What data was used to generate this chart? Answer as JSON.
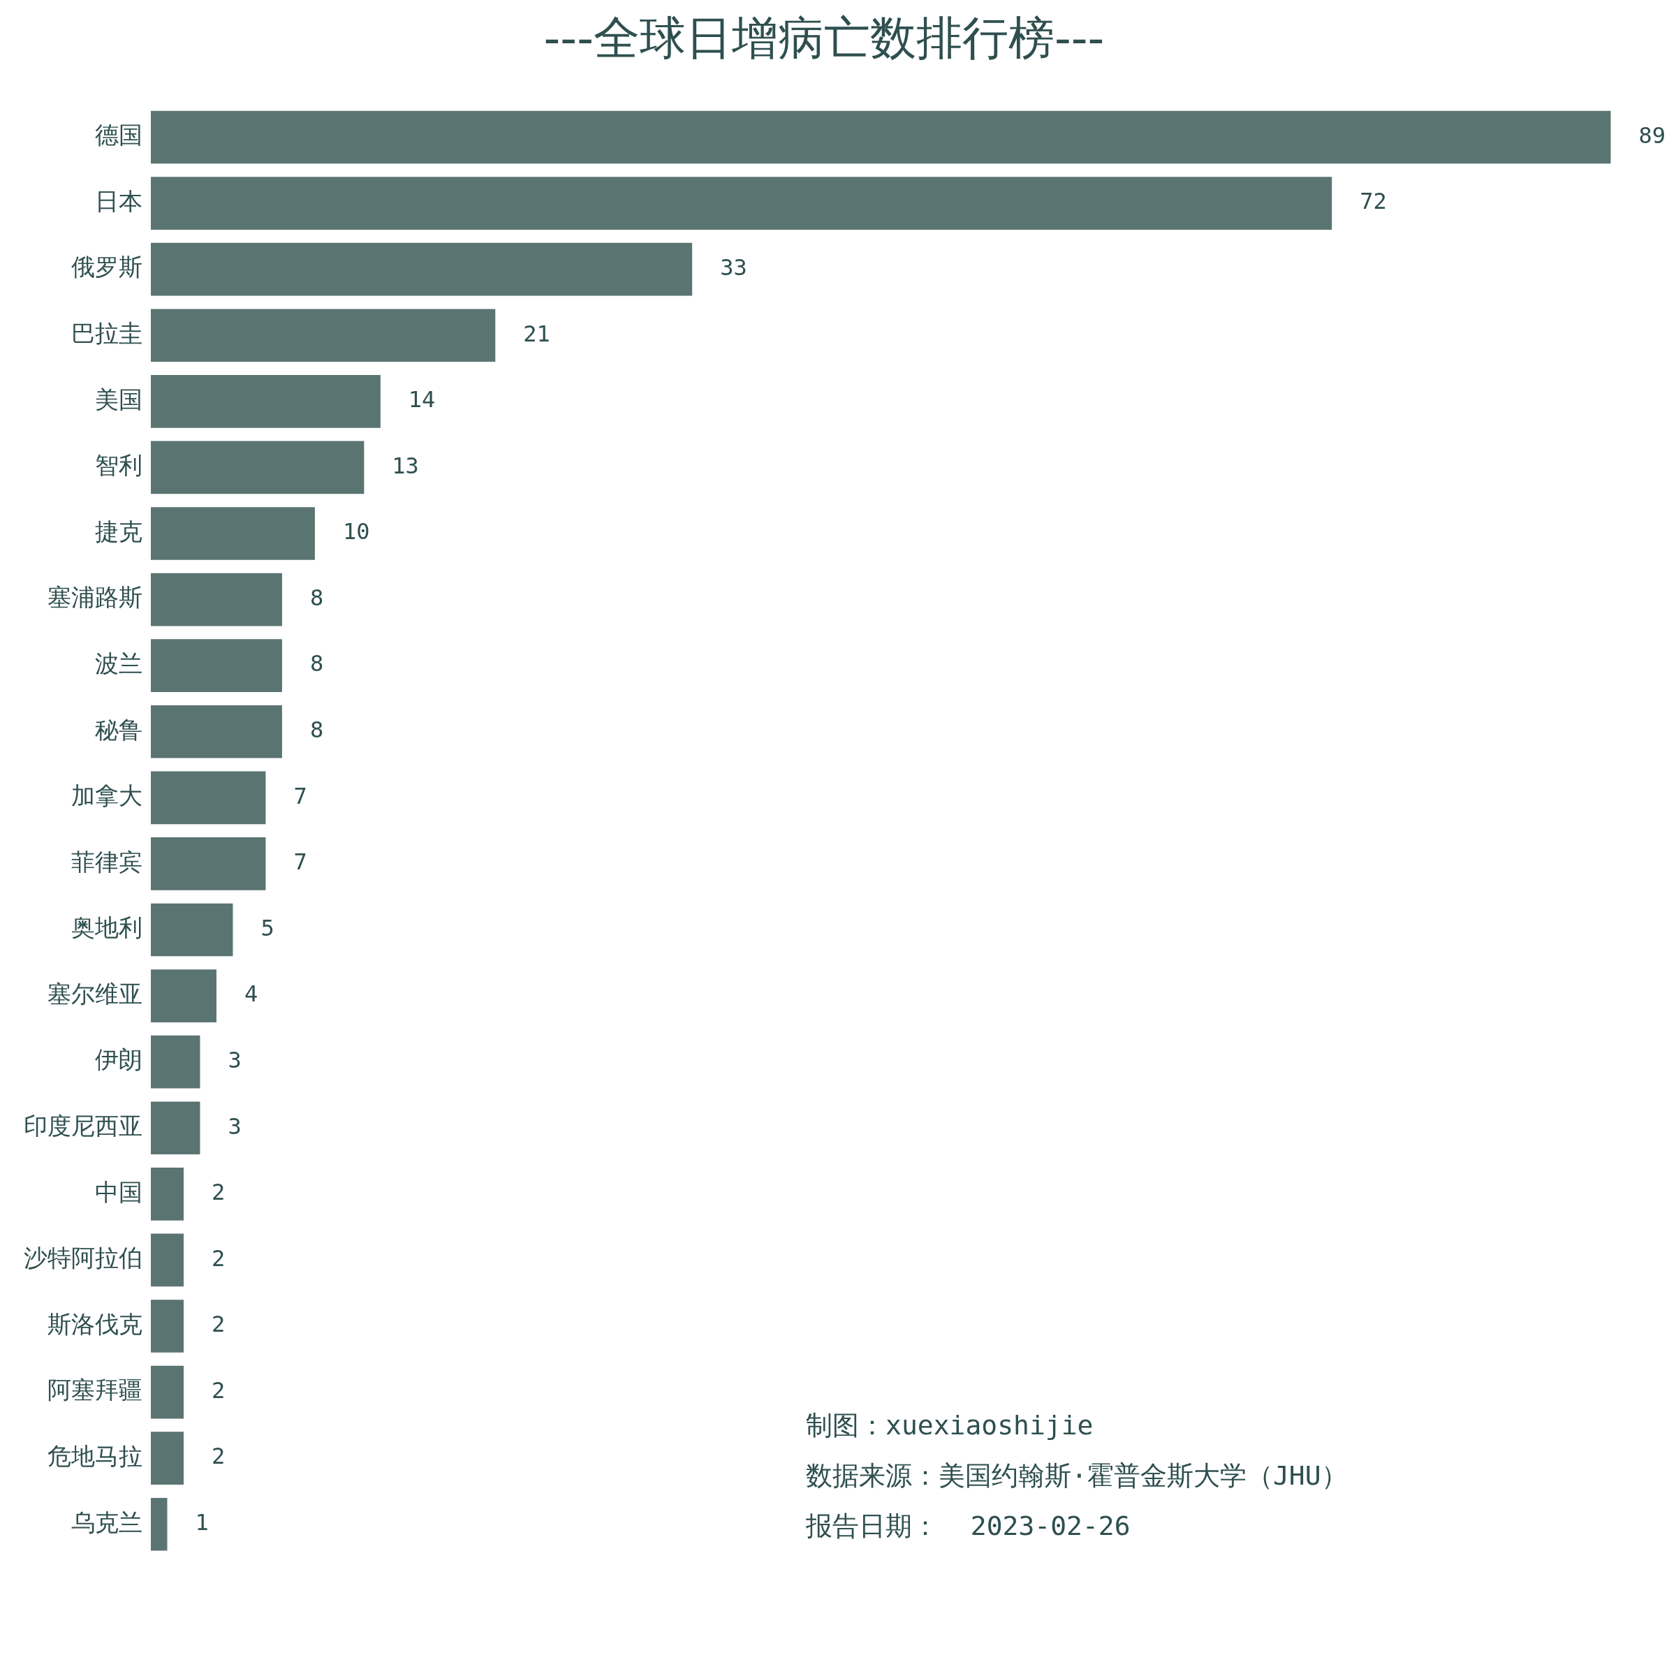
{
  "chart_data": {
    "type": "bar",
    "orientation": "horizontal",
    "title": "---全球日增病亡数排行榜---",
    "categories": [
      "德国",
      "日本",
      "俄罗斯",
      "巴拉圭",
      "美国",
      "智利",
      "捷克",
      "塞浦路斯",
      "波兰",
      "秘鲁",
      "加拿大",
      "菲律宾",
      "奥地利",
      "塞尔维亚",
      "伊朗",
      "印度尼西亚",
      "中国",
      "沙特阿拉伯",
      "斯洛伐克",
      "阿塞拜疆",
      "危地马拉",
      "乌克兰"
    ],
    "values": [
      89,
      72,
      33,
      21,
      14,
      13,
      10,
      8,
      8,
      8,
      7,
      7,
      5,
      4,
      3,
      3,
      2,
      2,
      2,
      2,
      2,
      1
    ],
    "color": "#5a7472",
    "data_labels": true,
    "grid": false,
    "legend": false,
    "tick_labels": "y",
    "annotations": [
      "制图：xuexiaoshijie",
      "数据来源：美国约翰斯·霍普金斯大学（JHU）",
      "报告日期：  2023-02-26"
    ]
  }
}
